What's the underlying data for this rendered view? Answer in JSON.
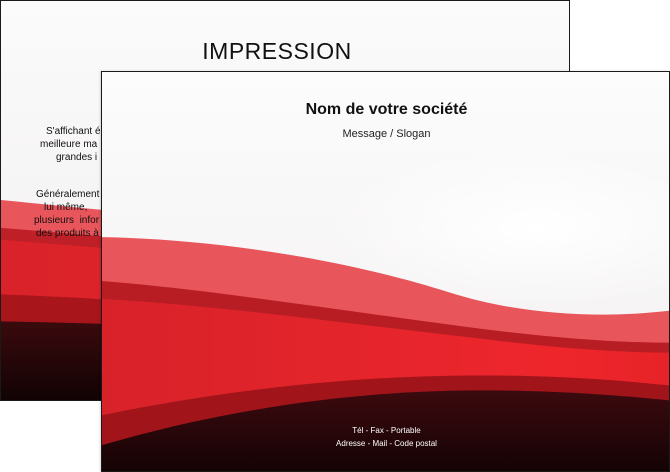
{
  "back": {
    "title": "IMPRESSION",
    "para1": [
      "S'affichant é",
      "meilleure ma",
      "grandes i"
    ],
    "para2": [
      "Généralement",
      "lui même,",
      "plusieurs  infor",
      "des produits à"
    ]
  },
  "front": {
    "company": "Nom de votre société",
    "slogan": "Message / Slogan",
    "contact_line1": "Tél - Fax - Portable",
    "contact_line2": "Adresse - Mail - Code postal"
  },
  "colors": {
    "red": "#e8262b",
    "light_red": "#e8555b",
    "dark_red": "#a4141a",
    "black": "#200608"
  }
}
